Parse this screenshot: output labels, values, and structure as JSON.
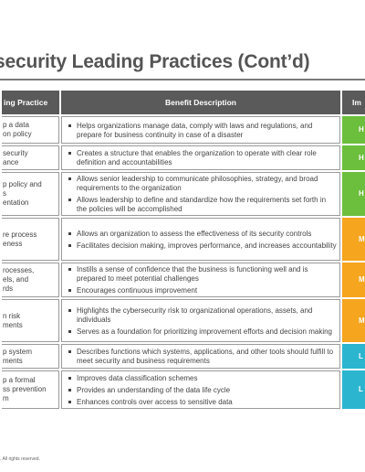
{
  "title": "security Leading Practices (Cont’d)",
  "headers": {
    "practice": "ing Practice",
    "benefit": "Benefit Description",
    "impact": "Im"
  },
  "colors": {
    "header_bg": "#5a5a5a",
    "high": "#6bbf3c",
    "medium": "#f5a51e",
    "low": "#2bb5cf"
  },
  "rows": [
    {
      "practice": [
        "p a data",
        "on policy"
      ],
      "benefits": [
        "Helps organizations manage data, comply with laws and regulations, and prepare for business continuity in case of a disaster"
      ],
      "impact": "H",
      "level": "high"
    },
    {
      "practice": [
        "security",
        "ance"
      ],
      "benefits": [
        "Creates a structure that enables the organization to operate with clear role definition and accountabilities"
      ],
      "impact": "H",
      "level": "high"
    },
    {
      "practice": [
        "p policy and",
        "s",
        "entation"
      ],
      "benefits": [
        "Allows senior leadership to communicate philosophies, strategy, and broad requirements to the organization",
        "Allows leadership to define and standardize how the requirements set forth in the policies will be accomplished"
      ],
      "impact": "H",
      "level": "high"
    },
    {
      "practice": [
        "re process",
        "eness"
      ],
      "benefits": [
        "Allows an organization to assess the effectiveness of its security controls",
        "Facilitates decision making, improves performance, and increases accountability"
      ],
      "impact": "Me",
      "level": "medium"
    },
    {
      "practice": [
        "rocesses,",
        "els, and",
        "rds"
      ],
      "benefits": [
        "Instills a sense of confidence that the business is functioning well and is prepared to meet potential challenges",
        "Encourages continuous improvement"
      ],
      "impact": "Me",
      "level": "medium"
    },
    {
      "practice": [
        "n risk",
        "ments"
      ],
      "benefits": [
        "Highlights the cybersecurity risk to organizational operations, assets, and individuals",
        "Serves as a foundation for prioritizing improvement efforts and decision making"
      ],
      "impact": "Me",
      "level": "medium"
    },
    {
      "practice": [
        "p system",
        "ments"
      ],
      "benefits": [
        "Describes functions which systems, applications, and other tools should fulfill to meet security and business requirements"
      ],
      "impact": "L",
      "level": "low"
    },
    {
      "practice": [
        "p a formal",
        "ss prevention",
        "m"
      ],
      "benefits": [
        "Improves data classification schemes",
        "Provides an understanding of the data life cycle",
        "Enhances controls over access to sensitive data"
      ],
      "impact": "L",
      "level": "low"
    }
  ],
  "footer": ". All rights reserved."
}
